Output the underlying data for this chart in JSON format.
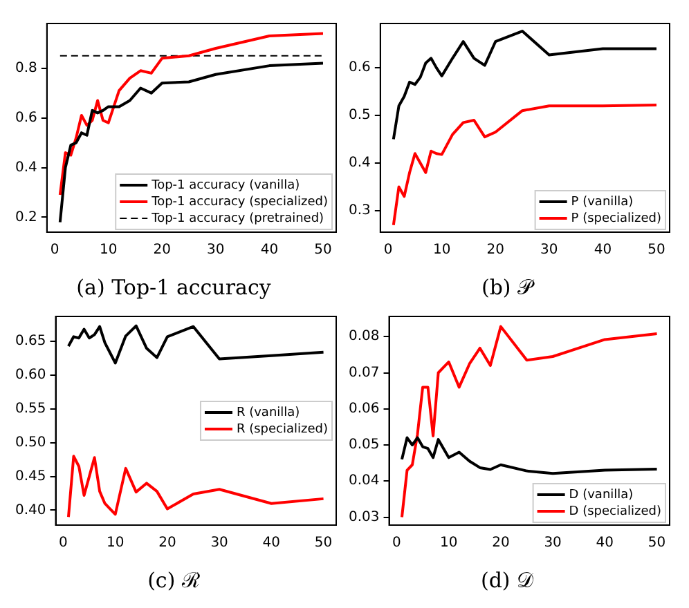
{
  "chart_data": [
    {
      "type": "line",
      "title": "(a) Top-1 accuracy",
      "x": [
        1,
        2,
        3,
        4,
        5,
        6,
        7,
        8,
        9,
        10,
        12,
        14,
        16,
        18,
        20,
        25,
        30,
        40,
        50
      ],
      "xlim": [
        -1.45,
        52.45
      ],
      "xticks": [
        0,
        10,
        20,
        30,
        40,
        50
      ],
      "ylim": [
        0.14,
        0.98
      ],
      "yticks": [
        0.2,
        0.4,
        0.6,
        0.8
      ],
      "legend": "bottom right",
      "grid": false,
      "marker": "none",
      "series": [
        {
          "name": "Top-1 accuracy (vanilla)",
          "color": "#000000",
          "values": [
            0.18,
            0.4,
            0.49,
            0.5,
            0.54,
            0.53,
            0.63,
            0.62,
            0.63,
            0.645,
            0.645,
            0.67,
            0.72,
            0.7,
            0.74,
            0.745,
            0.775,
            0.81,
            0.82
          ]
        },
        {
          "name": "Top-1 accuracy (specialized)",
          "color": "#ff0000",
          "values": [
            0.29,
            0.46,
            0.45,
            0.52,
            0.61,
            0.57,
            0.59,
            0.67,
            0.59,
            0.58,
            0.71,
            0.76,
            0.79,
            0.78,
            0.84,
            0.85,
            0.88,
            0.93,
            0.94
          ]
        },
        {
          "name": "Top-1 accuracy (pretrained)",
          "color": "#000000",
          "line_style": "dashed",
          "x": [
            1,
            50
          ],
          "values": [
            0.85,
            0.85
          ]
        }
      ]
    },
    {
      "type": "line",
      "title": "(b) 𝒫",
      "x": [
        1,
        2,
        3,
        4,
        5,
        6,
        7,
        8,
        9,
        10,
        12,
        14,
        16,
        18,
        20,
        25,
        30,
        40,
        50
      ],
      "xlim": [
        -1.45,
        52.45
      ],
      "xticks": [
        0,
        10,
        20,
        30,
        40,
        50
      ],
      "ylim": [
        0.255,
        0.693
      ],
      "yticks": [
        0.3,
        0.4,
        0.5,
        0.6
      ],
      "legend": "bottom right",
      "grid": false,
      "marker": "none",
      "series": [
        {
          "name": "P (vanilla)",
          "color": "#000000",
          "values": [
            0.45,
            0.52,
            0.54,
            0.57,
            0.565,
            0.58,
            0.61,
            0.62,
            0.6,
            0.583,
            0.62,
            0.655,
            0.62,
            0.605,
            0.655,
            0.677,
            0.627,
            0.64,
            0.64
          ]
        },
        {
          "name": "P (specialized)",
          "color": "#ff0000",
          "values": [
            0.27,
            0.35,
            0.33,
            0.38,
            0.42,
            0.4,
            0.38,
            0.425,
            0.42,
            0.418,
            0.46,
            0.485,
            0.49,
            0.455,
            0.465,
            0.51,
            0.52,
            0.52,
            0.522
          ]
        }
      ]
    },
    {
      "type": "line",
      "title": "(c) ℛ",
      "x": [
        1,
        2,
        3,
        4,
        5,
        6,
        7,
        8,
        9,
        10,
        12,
        14,
        16,
        18,
        20,
        25,
        30,
        40,
        50
      ],
      "xlim": [
        -1.45,
        52.45
      ],
      "xticks": [
        0,
        10,
        20,
        30,
        40,
        50
      ],
      "ylim": [
        0.378,
        0.687
      ],
      "yticks": [
        {
          "value": 0.4,
          "label": "0.40"
        },
        0.45,
        {
          "value": 0.5,
          "label": "0.50"
        },
        0.55,
        {
          "value": 0.6,
          "label": "0.60"
        },
        0.65
      ],
      "legend": "right",
      "grid": false,
      "marker": "none",
      "series": [
        {
          "name": "R (vanilla)",
          "color": "#000000",
          "values": [
            0.643,
            0.657,
            0.655,
            0.668,
            0.655,
            0.66,
            0.672,
            0.648,
            0.633,
            0.618,
            0.658,
            0.673,
            0.64,
            0.626,
            0.657,
            0.672,
            0.624,
            0.629,
            0.634
          ]
        },
        {
          "name": "R (specialized)",
          "color": "#ff0000",
          "values": [
            0.39,
            0.48,
            0.465,
            0.422,
            0.45,
            0.478,
            0.428,
            0.41,
            0.402,
            0.394,
            0.462,
            0.427,
            0.44,
            0.428,
            0.402,
            0.424,
            0.431,
            0.41,
            0.417
          ]
        }
      ]
    },
    {
      "type": "line",
      "title": "(d) 𝒟",
      "x": [
        1,
        2,
        3,
        4,
        5,
        6,
        7,
        8,
        9,
        10,
        12,
        14,
        16,
        18,
        20,
        25,
        30,
        40,
        50
      ],
      "xlim": [
        -1.45,
        52.45
      ],
      "xticks": [
        0,
        10,
        20,
        30,
        40,
        50
      ],
      "ylim": [
        0.0278,
        0.0856
      ],
      "yticks": [
        0.03,
        0.04,
        0.05,
        0.06,
        0.07,
        0.08
      ],
      "legend": "bottom right",
      "grid": false,
      "marker": "none",
      "series": [
        {
          "name": "D (vanilla)",
          "color": "#000000",
          "values": [
            0.046,
            0.052,
            0.05,
            0.052,
            0.0495,
            0.049,
            0.0465,
            0.0515,
            0.049,
            0.0465,
            0.048,
            0.0455,
            0.0437,
            0.0432,
            0.0445,
            0.0428,
            0.0421,
            0.043,
            0.0433
          ]
        },
        {
          "name": "D (specialized)",
          "color": "#ff0000",
          "values": [
            0.03,
            0.043,
            0.0445,
            0.053,
            0.066,
            0.066,
            0.0525,
            0.07,
            0.0715,
            0.073,
            0.066,
            0.0725,
            0.0768,
            0.072,
            0.0828,
            0.0735,
            0.0745,
            0.0792,
            0.0808
          ]
        }
      ]
    }
  ]
}
